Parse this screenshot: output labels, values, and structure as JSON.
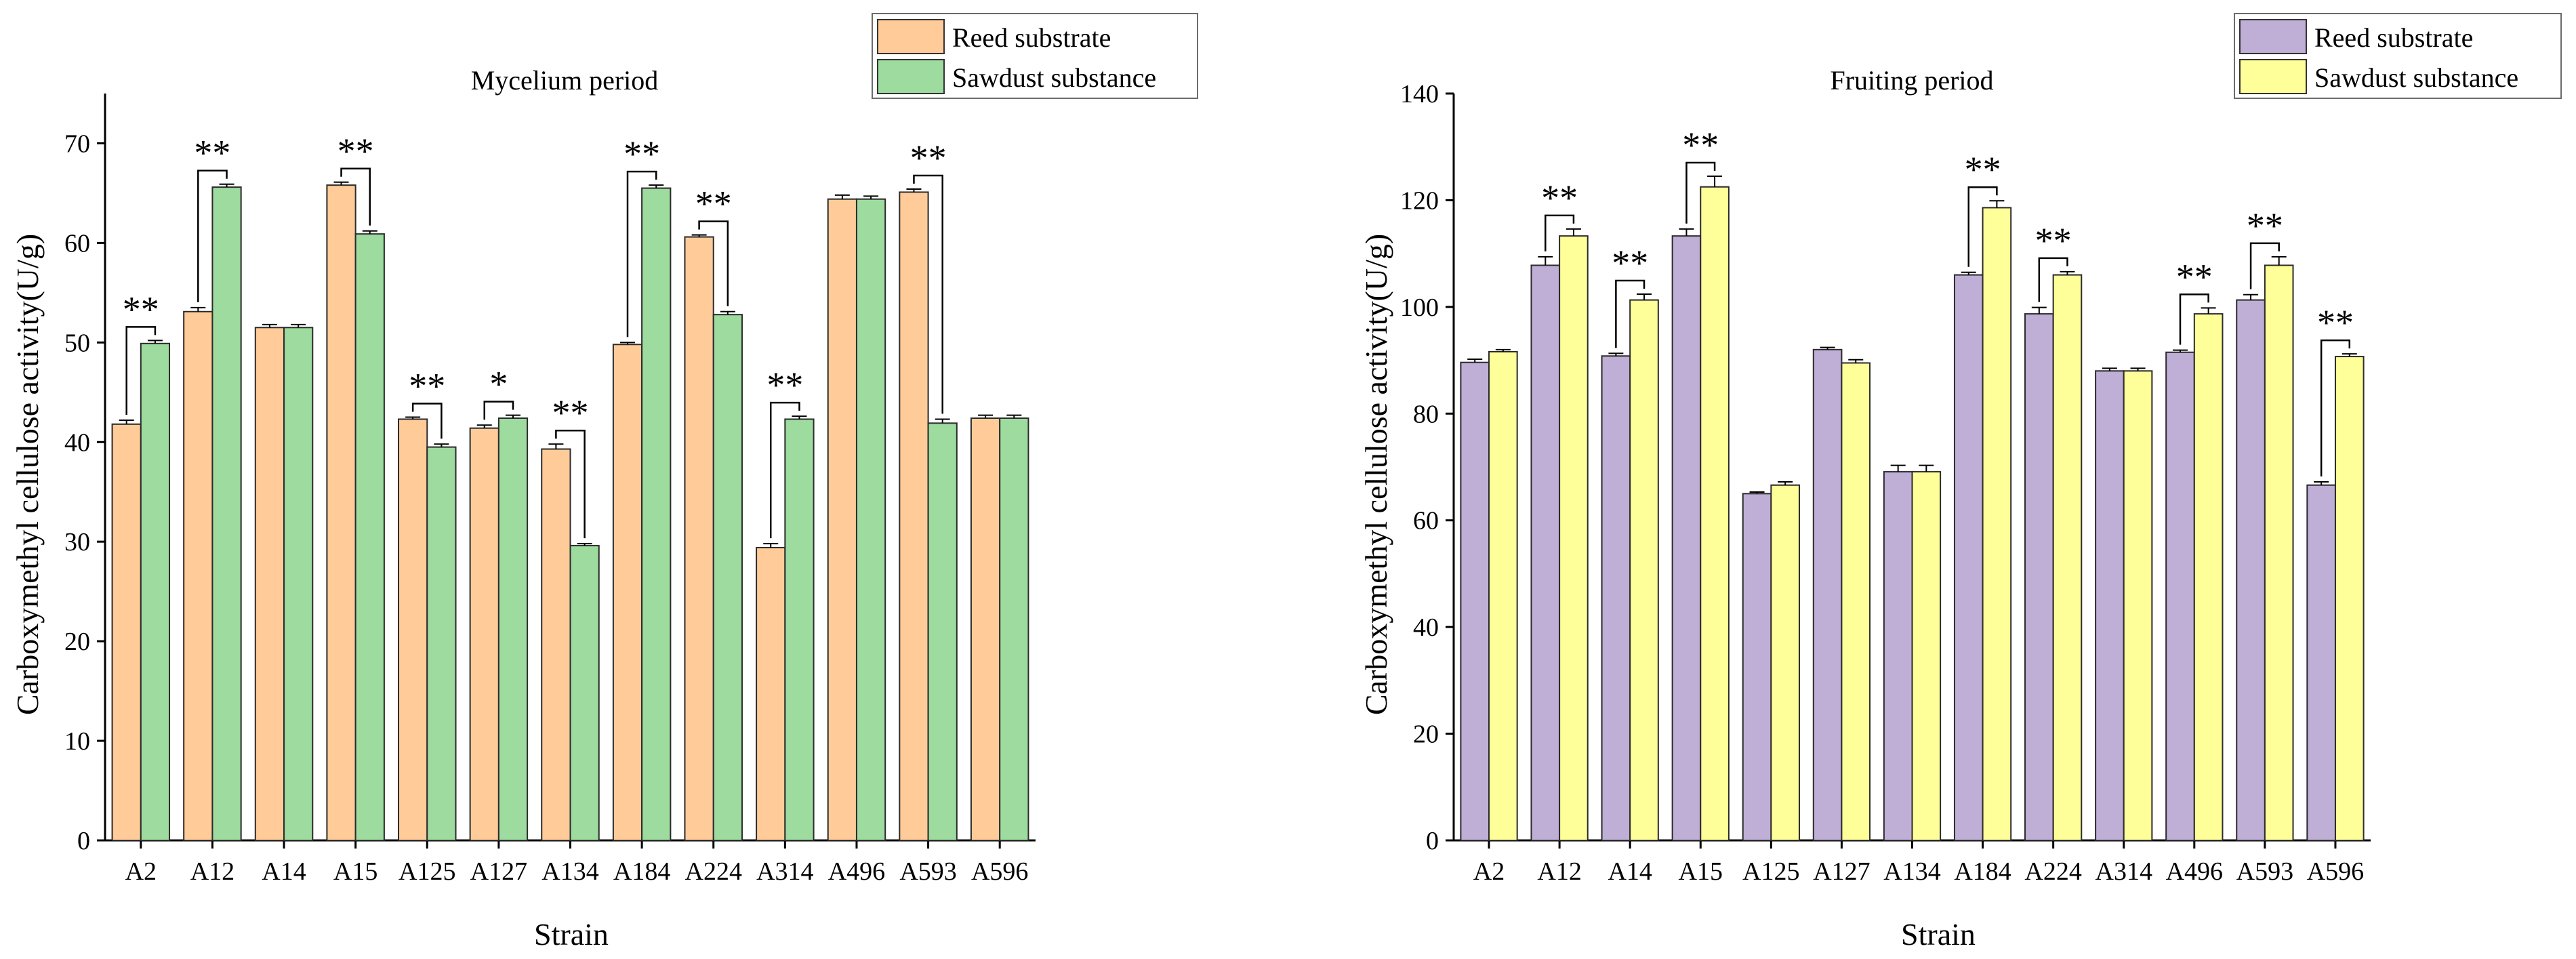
{
  "chart_data": [
    {
      "type": "bar",
      "title": "Mycelium period",
      "xlabel": "Strain",
      "ylabel": "Carboxymethyl cellulose activity(U/g)",
      "ylim": [
        0,
        75
      ],
      "yticks": [
        0,
        10,
        20,
        30,
        40,
        50,
        60,
        70
      ],
      "grid": false,
      "legend_position": "top-right",
      "categories": [
        "A2",
        "A12",
        "A14",
        "A15",
        "A125",
        "A127",
        "A134",
        "A184",
        "A224",
        "A314",
        "A496",
        "A593",
        "A596"
      ],
      "series": [
        {
          "name": "Reed substrate",
          "color": "#FFCB99",
          "values": [
            41.8,
            53.1,
            51.5,
            65.8,
            42.3,
            41.4,
            39.3,
            49.8,
            60.6,
            29.4,
            64.4,
            65.1,
            42.4
          ],
          "errors": [
            0.4,
            0.4,
            0.3,
            0.3,
            0.2,
            0.3,
            0.5,
            0.2,
            0.2,
            0.4,
            0.4,
            0.3,
            0.3
          ]
        },
        {
          "name": "Sawdust substance",
          "color": "#9DDB9F",
          "values": [
            49.9,
            65.6,
            51.5,
            60.9,
            39.5,
            42.4,
            29.6,
            65.5,
            52.8,
            42.3,
            64.4,
            41.9,
            42.4
          ],
          "errors": [
            0.3,
            0.3,
            0.3,
            0.3,
            0.3,
            0.3,
            0.2,
            0.3,
            0.3,
            0.3,
            0.3,
            0.4,
            0.3
          ]
        }
      ],
      "significance": [
        "**",
        "**",
        "",
        "**",
        "**",
        "*",
        "**",
        "**",
        "**",
        "**",
        "",
        "**",
        ""
      ]
    },
    {
      "type": "bar",
      "title": "Fruiting period",
      "xlabel": "Strain",
      "ylabel": "Carboxymethyl cellulose activity(U/g)",
      "ylim": [
        0,
        140
      ],
      "yticks": [
        0,
        20,
        40,
        60,
        80,
        100,
        120,
        140
      ],
      "grid": false,
      "legend_position": "top-right",
      "categories": [
        "A2",
        "A12",
        "A14",
        "A15",
        "A125",
        "A127",
        "A134",
        "A184",
        "A224",
        "A314",
        "A496",
        "A593",
        "A596"
      ],
      "series": [
        {
          "name": "Reed substrate",
          "color": "#BFAED6",
          "values": [
            89.6,
            107.8,
            90.8,
            113.3,
            65.0,
            92.0,
            69.1,
            106.0,
            98.7,
            88.0,
            91.5,
            101.3,
            66.6
          ],
          "errors": [
            0.6,
            1.6,
            0.5,
            1.3,
            0.3,
            0.4,
            1.2,
            0.5,
            1.2,
            0.5,
            0.4,
            1.0,
            0.6
          ]
        },
        {
          "name": "Sawdust substance",
          "color": "#FFFF99",
          "values": [
            91.6,
            113.3,
            101.3,
            122.5,
            66.6,
            89.5,
            69.1,
            118.6,
            106.0,
            88.0,
            98.7,
            107.8,
            90.7
          ],
          "errors": [
            0.4,
            1.3,
            1.1,
            2.0,
            0.6,
            0.6,
            1.2,
            1.3,
            0.6,
            0.5,
            1.1,
            1.6,
            0.5
          ]
        }
      ],
      "significance": [
        "",
        "**",
        "**",
        "**",
        "",
        "",
        "",
        "**",
        "**",
        "",
        "**",
        "**",
        "**"
      ]
    }
  ]
}
